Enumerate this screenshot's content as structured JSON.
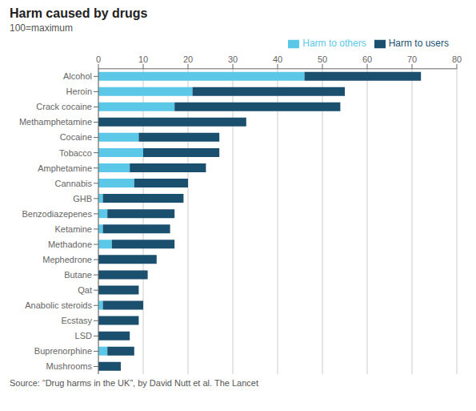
{
  "chart_data": {
    "type": "bar",
    "orientation": "horizontal",
    "stacked": true,
    "title": "Harm caused by drugs",
    "subtitle": "100=maximum",
    "source": "Source: “Drug harms in the UK”, by David Nutt et al. The Lancet",
    "categories": [
      "Alcohol",
      "Heroin",
      "Crack cocaine",
      "Methamphetamine",
      "Cocaine",
      "Tobacco",
      "Amphetamine",
      "Cannabis",
      "GHB",
      "Benzodiazepenes",
      "Ketamine",
      "Methadone",
      "Mephedrone",
      "Butane",
      "Qat",
      "Anabolic steroids",
      "Ecstasy",
      "LSD",
      "Buprenorphine",
      "Mushrooms"
    ],
    "series": [
      {
        "name": "Harm to others",
        "color": "#5bc8e8",
        "values": [
          46,
          21,
          17,
          0,
          9,
          10,
          7,
          8,
          1,
          2,
          1,
          3,
          0,
          0,
          0,
          1,
          0,
          0,
          2,
          0
        ]
      },
      {
        "name": "Harm to users",
        "color": "#1b4f6e",
        "values": [
          26,
          34,
          37,
          33,
          18,
          17,
          17,
          12,
          18,
          15,
          15,
          14,
          13,
          11,
          9,
          9,
          9,
          7,
          6,
          5
        ]
      }
    ],
    "xlim": [
      0,
      80
    ],
    "xticks": [
      0,
      10,
      20,
      30,
      40,
      50,
      60,
      70,
      80
    ],
    "grid": true,
    "legend": "upper right"
  }
}
